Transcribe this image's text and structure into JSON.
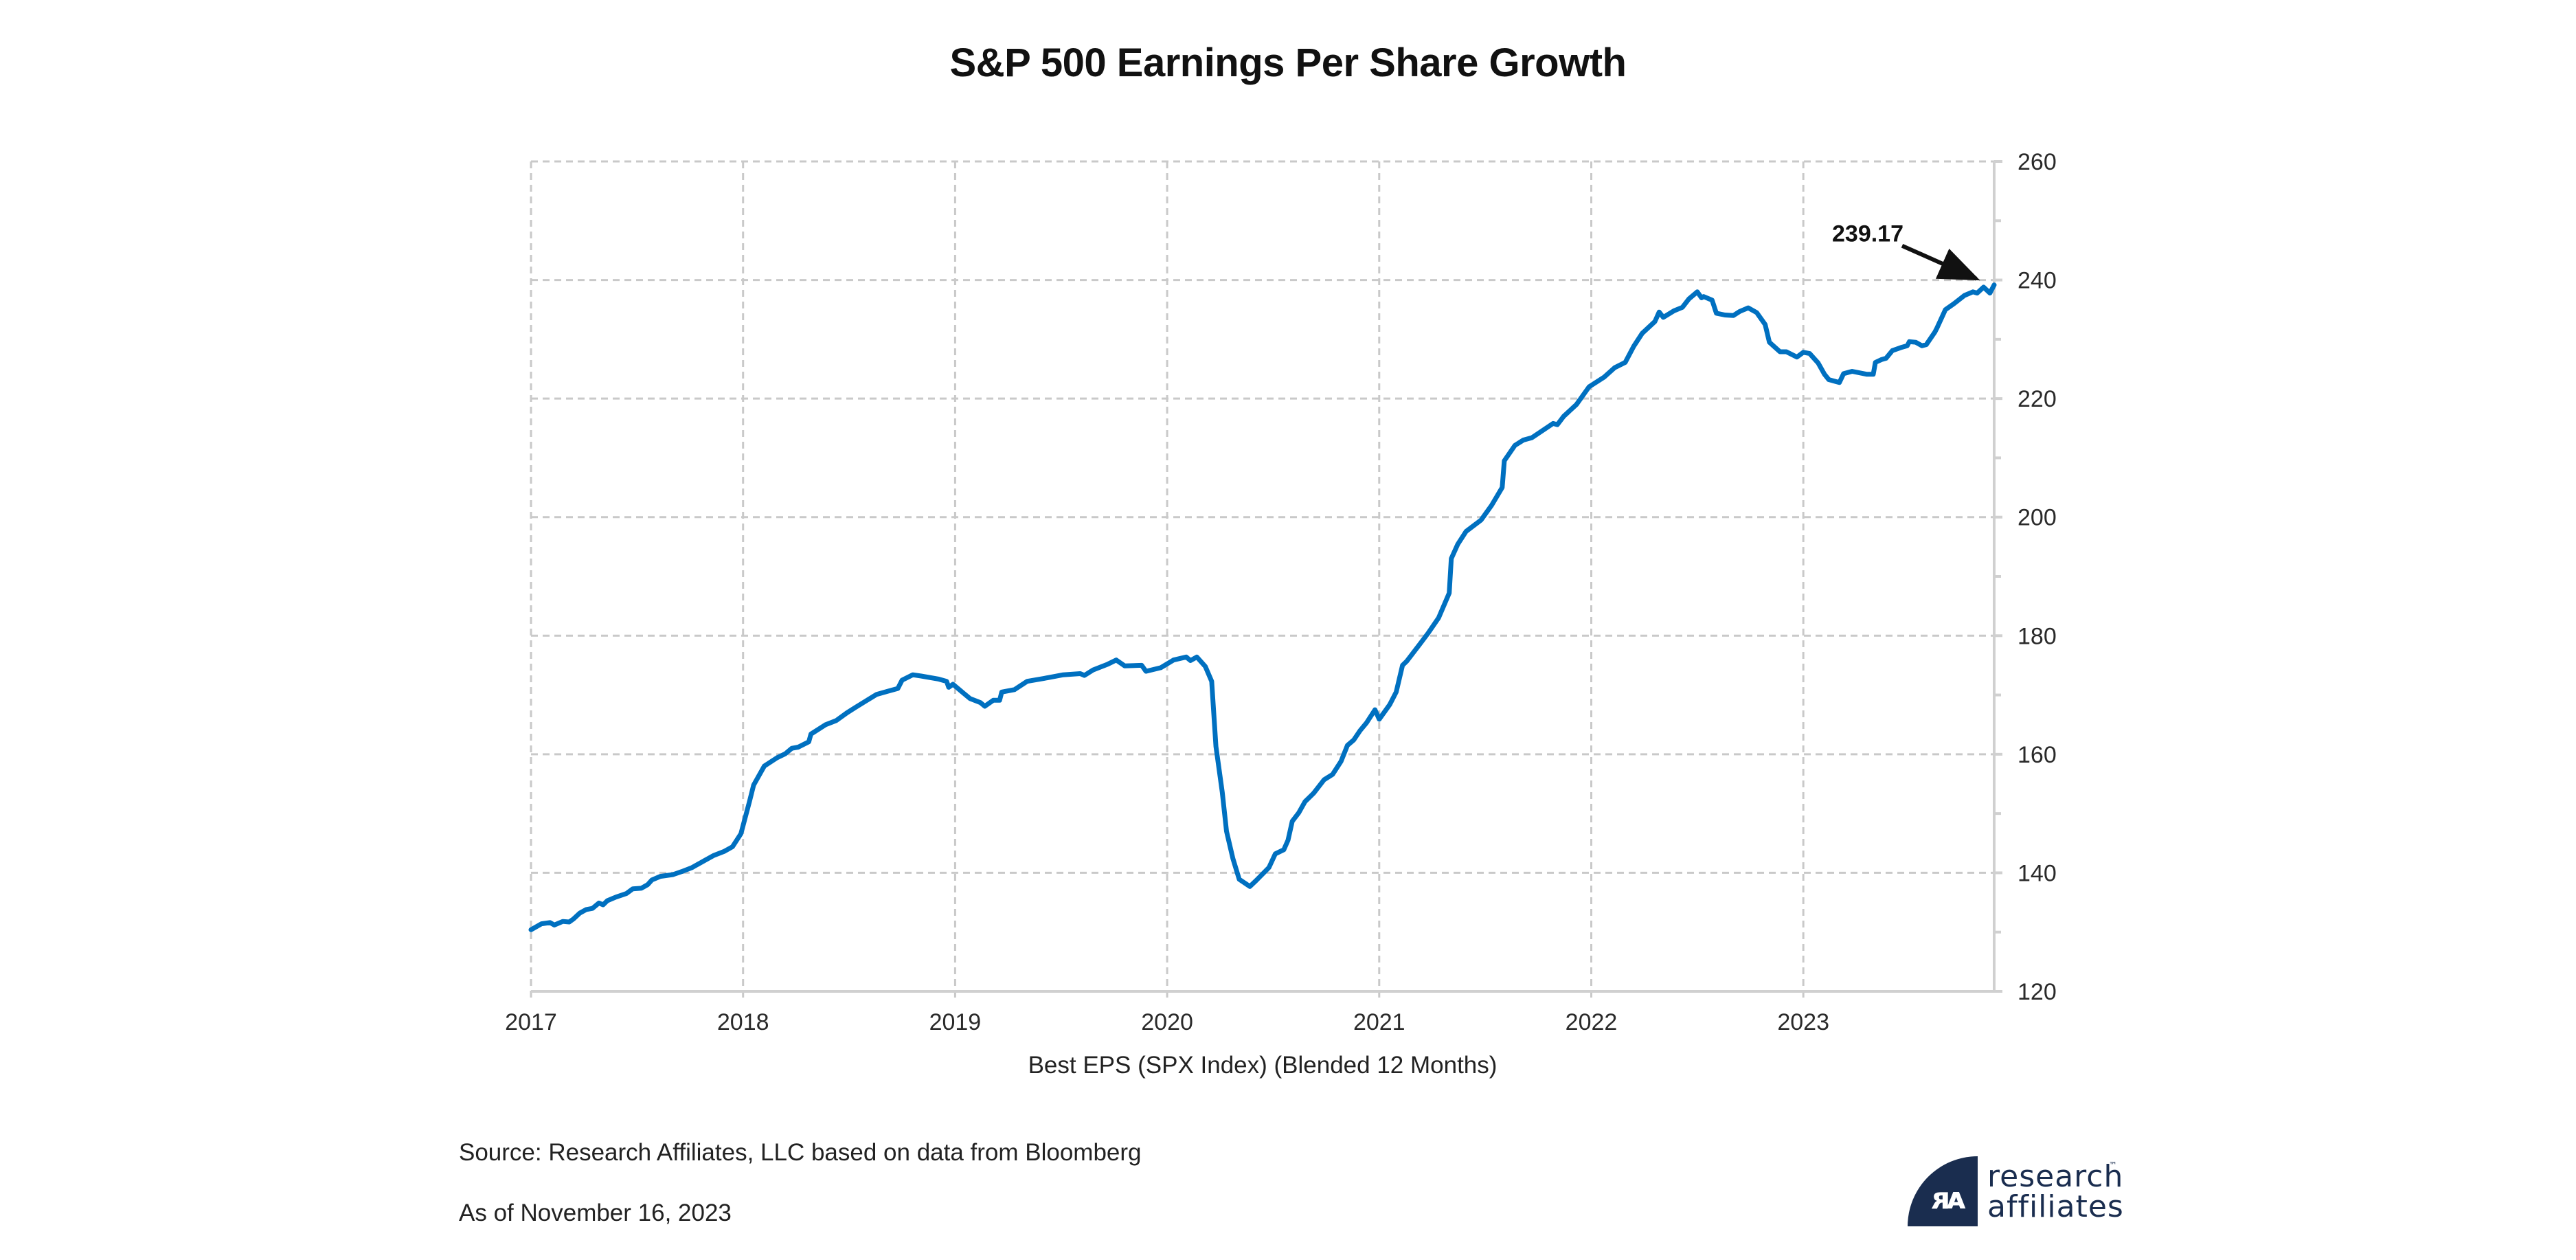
{
  "chart_data": {
    "type": "line",
    "title": "S&P 500 Earnings Per Share Growth",
    "xlabel": "Best EPS (SPX Index) (Blended 12 Months)",
    "ylabel": "",
    "xlim": [
      2017,
      2023.9
    ],
    "ylim": [
      120,
      260
    ],
    "x_ticks": [
      2017,
      2018,
      2019,
      2020,
      2021,
      2022,
      2023
    ],
    "x_tick_labels": [
      "2017",
      "2018",
      "2019",
      "2020",
      "2021",
      "2022",
      "2023"
    ],
    "y_ticks": [
      120,
      140,
      160,
      180,
      200,
      220,
      240,
      260
    ],
    "y_tick_labels": [
      "120",
      "140",
      "160",
      "180",
      "200",
      "220",
      "240",
      "260"
    ],
    "y_minor_ticks": [
      130,
      150,
      170,
      190,
      210,
      230,
      250
    ],
    "y_axis_side": "right",
    "grid": true,
    "grid_style": "dashed",
    "legend": null,
    "line_color": "#0070c0",
    "annotation": {
      "text": "239.17",
      "x": 2023.9,
      "y": 239.17
    },
    "series": [
      {
        "name": "Best EPS (SPX Index) (Blended 12 Months)",
        "x": [
          2017.0,
          2017.05,
          2017.09,
          2017.11,
          2017.15,
          2017.18,
          2017.2,
          2017.23,
          2017.26,
          2017.29,
          2017.32,
          2017.34,
          2017.36,
          2017.4,
          2017.45,
          2017.48,
          2017.52,
          2017.55,
          2017.57,
          2017.61,
          2017.67,
          2017.71,
          2017.76,
          2017.82,
          2017.86,
          2017.91,
          2017.95,
          2017.99,
          2018.03,
          2018.05,
          2018.1,
          2018.16,
          2018.2,
          2018.23,
          2018.26,
          2018.31,
          2018.32,
          2018.39,
          2018.44,
          2018.49,
          2018.53,
          2018.58,
          2018.63,
          2018.68,
          2018.73,
          2018.75,
          2018.8,
          2018.84,
          2018.92,
          2018.96,
          2018.97,
          2018.99,
          2019.04,
          2019.07,
          2019.12,
          2019.14,
          2019.18,
          2019.21,
          2019.22,
          2019.28,
          2019.34,
          2019.42,
          2019.51,
          2019.59,
          2019.61,
          2019.65,
          2019.72,
          2019.76,
          2019.8,
          2019.88,
          2019.9,
          2019.97,
          2020.03,
          2020.09,
          2020.11,
          2020.14,
          2020.18,
          2020.21,
          2020.23,
          2020.26,
          2020.28,
          2020.31,
          2020.34,
          2020.39,
          2020.42,
          2020.48,
          2020.51,
          2020.55,
          2020.57,
          2020.59,
          2020.62,
          2020.65,
          2020.69,
          2020.74,
          2020.78,
          2020.82,
          2020.85,
          2020.88,
          2020.91,
          2020.94,
          2020.98,
          2021.0,
          2021.05,
          2021.08,
          2021.11,
          2021.13,
          2021.19,
          2021.23,
          2021.28,
          2021.33,
          2021.34,
          2021.37,
          2021.41,
          2021.48,
          2021.53,
          2021.58,
          2021.59,
          2021.64,
          2021.68,
          2021.72,
          2021.82,
          2021.84,
          2021.87,
          2021.93,
          2021.99,
          2022.06,
          2022.11,
          2022.16,
          2022.2,
          2022.24,
          2022.3,
          2022.32,
          2022.34,
          2022.39,
          2022.43,
          2022.46,
          2022.5,
          2022.52,
          2022.53,
          2022.57,
          2022.59,
          2022.63,
          2022.67,
          2022.7,
          2022.74,
          2022.78,
          2022.82,
          2022.84,
          2022.89,
          2022.92,
          2022.97,
          2023.0,
          2023.03,
          2023.07,
          2023.1,
          2023.12,
          2023.17,
          2023.19,
          2023.23,
          2023.3,
          2023.33,
          2023.34,
          2023.37,
          2023.39,
          2023.42,
          2023.46,
          2023.49,
          2023.5,
          2023.53,
          2023.56,
          2023.58,
          2023.62,
          2023.63,
          2023.67,
          2023.71,
          2023.76,
          2023.8,
          2023.82,
          2023.85,
          2023.88,
          2023.9
        ],
        "values": [
          130.4,
          131.4,
          131.6,
          131.2,
          131.8,
          131.7,
          132.2,
          133.2,
          133.8,
          134.0,
          134.9,
          134.6,
          135.3,
          135.9,
          136.5,
          137.3,
          137.4,
          138.0,
          138.8,
          139.4,
          139.7,
          140.2,
          140.9,
          142.1,
          142.9,
          143.6,
          144.4,
          146.6,
          152.0,
          154.8,
          158.0,
          159.4,
          160.1,
          161.0,
          161.2,
          162.1,
          163.4,
          165.0,
          165.7,
          167.0,
          167.9,
          169.0,
          170.1,
          170.6,
          171.1,
          172.5,
          173.4,
          173.2,
          172.7,
          172.3,
          171.3,
          171.8,
          170.3,
          169.4,
          168.7,
          168.1,
          169.1,
          169.1,
          170.5,
          170.9,
          172.3,
          172.8,
          173.4,
          173.6,
          173.3,
          174.2,
          175.2,
          175.9,
          174.9,
          175.0,
          174.0,
          174.6,
          175.9,
          176.4,
          175.8,
          176.4,
          174.8,
          172.3,
          161.3,
          153.6,
          147.0,
          142.4,
          138.9,
          137.7,
          138.7,
          140.9,
          143.2,
          143.9,
          145.5,
          148.7,
          150.1,
          152.0,
          153.4,
          155.7,
          156.6,
          158.8,
          161.5,
          162.4,
          164.0,
          165.3,
          167.5,
          165.9,
          168.4,
          170.5,
          175.0,
          175.7,
          178.5,
          180.4,
          183.0,
          187.2,
          193.0,
          195.4,
          197.6,
          199.5,
          202.0,
          205.0,
          209.5,
          212.1,
          213.0,
          213.4,
          215.8,
          215.6,
          217.0,
          219.0,
          222.0,
          223.6,
          225.2,
          226.1,
          228.8,
          231.0,
          233.0,
          234.6,
          233.7,
          234.8,
          235.4,
          236.8,
          238.0,
          237.0,
          237.2,
          236.6,
          234.4,
          234.1,
          234.0,
          234.7,
          235.3,
          234.5,
          232.5,
          229.5,
          227.9,
          227.9,
          227.0,
          227.8,
          227.6,
          226.0,
          224.1,
          223.2,
          222.7,
          224.2,
          224.6,
          224.1,
          224.1,
          226.1,
          226.6,
          226.8,
          228.1,
          228.6,
          228.9,
          229.6,
          229.5,
          228.9,
          229.1,
          231.2,
          231.9,
          235.0,
          236.0,
          237.4,
          238.0,
          237.8,
          238.8,
          237.8,
          239.17
        ]
      }
    ]
  },
  "footer": {
    "source": "Source: Research Affiliates, LLC based on data from Bloomberg",
    "as_of": "As of November 16, 2023"
  },
  "logo": {
    "line1": "research",
    "line2": "affiliates",
    "trademark": "™",
    "glyph": "ᴙᴀ",
    "color": "#1a2d4f"
  }
}
